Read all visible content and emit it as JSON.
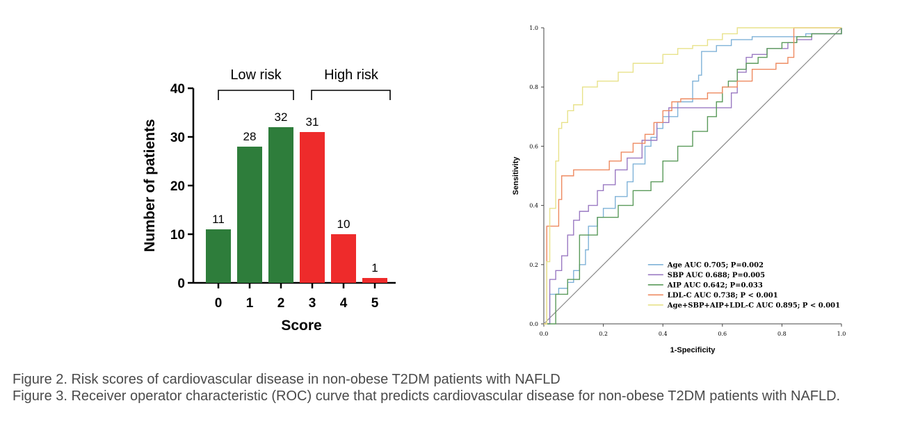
{
  "chart_data": [
    {
      "type": "bar",
      "xlabel": "Score",
      "ylabel": "Number of patients",
      "categories": [
        "0",
        "1",
        "2",
        "3",
        "4",
        "5"
      ],
      "values": [
        11,
        28,
        32,
        31,
        10,
        1
      ],
      "colors": [
        "#2e7d3b",
        "#2e7d3b",
        "#2e7d3b",
        "#ee2b2b",
        "#ee2b2b",
        "#ee2b2b"
      ],
      "ylim": [
        0,
        40
      ],
      "yticks": [
        0,
        10,
        20,
        30,
        40
      ],
      "groups": [
        {
          "label": "Low risk",
          "categories": [
            "0",
            "1",
            "2"
          ]
        },
        {
          "label": "High risk",
          "categories": [
            "3",
            "4",
            "5"
          ]
        }
      ]
    },
    {
      "type": "line",
      "xlabel": "1-Specificity",
      "ylabel": "Sensitivity",
      "xlim": [
        0,
        1
      ],
      "ylim": [
        0,
        1
      ],
      "xticks": [
        "0.0",
        "0.2",
        "0.4",
        "0.6",
        "0.8",
        "1.0"
      ],
      "yticks": [
        "0.0",
        "0.2",
        "0.4",
        "0.6",
        "0.8",
        "1.0"
      ],
      "legend_position": "bottom-right",
      "series": [
        {
          "name": "Age AUC 0.705; P=0.002",
          "color": "#7fb2d8",
          "x": [
            0,
            0.02,
            0.02,
            0.05,
            0.08,
            0.1,
            0.12,
            0.14,
            0.15,
            0.18,
            0.2,
            0.24,
            0.28,
            0.3,
            0.34,
            0.36,
            0.38,
            0.4,
            0.45,
            0.5,
            0.5,
            0.52,
            0.53,
            0.58,
            0.63,
            0.7,
            0.8,
            0.88,
            1.0
          ],
          "y": [
            0,
            0.03,
            0.1,
            0.12,
            0.14,
            0.18,
            0.2,
            0.25,
            0.33,
            0.36,
            0.39,
            0.43,
            0.48,
            0.54,
            0.6,
            0.63,
            0.66,
            0.7,
            0.75,
            0.8,
            0.82,
            0.84,
            0.92,
            0.94,
            0.96,
            0.97,
            0.97,
            0.98,
            1.0
          ]
        },
        {
          "name": "SBP AUC 0.688; P=0.005",
          "color": "#9a79c2",
          "x": [
            0,
            0.02,
            0.04,
            0.06,
            0.08,
            0.1,
            0.12,
            0.15,
            0.18,
            0.2,
            0.24,
            0.28,
            0.33,
            0.38,
            0.42,
            0.5,
            0.6,
            0.63,
            0.65,
            0.68,
            0.7,
            0.75,
            0.82,
            0.85,
            0.9,
            1.0
          ],
          "y": [
            0,
            0.15,
            0.18,
            0.23,
            0.3,
            0.35,
            0.38,
            0.4,
            0.45,
            0.47,
            0.52,
            0.56,
            0.62,
            0.68,
            0.73,
            0.73,
            0.73,
            0.78,
            0.85,
            0.9,
            0.91,
            0.93,
            0.95,
            0.96,
            0.98,
            1.0
          ]
        },
        {
          "name": "AIP AUC 0.642; P=0.033",
          "color": "#5a9a5a",
          "x": [
            0,
            0.04,
            0.08,
            0.12,
            0.18,
            0.25,
            0.3,
            0.36,
            0.4,
            0.45,
            0.5,
            0.55,
            0.58,
            0.6,
            0.62,
            0.65,
            0.68,
            0.72,
            0.75,
            0.8,
            0.85,
            0.9,
            1.0
          ],
          "y": [
            0,
            0.1,
            0.15,
            0.3,
            0.36,
            0.4,
            0.45,
            0.48,
            0.55,
            0.6,
            0.65,
            0.7,
            0.75,
            0.8,
            0.82,
            0.86,
            0.88,
            0.9,
            0.93,
            0.95,
            0.97,
            0.98,
            1.0
          ]
        },
        {
          "name": "LDL-C AUC 0.738; P < 0.001",
          "color": "#ee8a60",
          "x": [
            0,
            0.01,
            0.05,
            0.06,
            0.1,
            0.2,
            0.22,
            0.26,
            0.3,
            0.34,
            0.37,
            0.4,
            0.43,
            0.46,
            0.5,
            0.55,
            0.6,
            0.65,
            0.7,
            0.78,
            0.82,
            0.84,
            0.9,
            1.0
          ],
          "y": [
            0,
            0.33,
            0.42,
            0.5,
            0.52,
            0.52,
            0.55,
            0.58,
            0.61,
            0.64,
            0.68,
            0.72,
            0.75,
            0.76,
            0.76,
            0.78,
            0.8,
            0.82,
            0.86,
            0.88,
            0.9,
            1.0,
            1.0,
            1.0
          ]
        },
        {
          "name": "Age+SBP+AIP+LDL-C AUC 0.895; P < 0.001",
          "color": "#e8e28a",
          "x": [
            0,
            0.01,
            0.02,
            0.04,
            0.05,
            0.06,
            0.08,
            0.1,
            0.13,
            0.18,
            0.25,
            0.3,
            0.4,
            0.45,
            0.5,
            0.55,
            0.6,
            0.65,
            0.7,
            0.8,
            1.0
          ],
          "y": [
            0,
            0.21,
            0.39,
            0.55,
            0.66,
            0.68,
            0.72,
            0.74,
            0.8,
            0.82,
            0.85,
            0.88,
            0.91,
            0.93,
            0.94,
            0.96,
            0.98,
            1.0,
            1.0,
            1.0,
            1.0
          ]
        }
      ]
    }
  ],
  "captions": {
    "figure2": "Figure 2. Risk scores of cardiovascular disease in non-obese T2DM patients with NAFLD",
    "figure3": "Figure 3. Receiver operator characteristic (ROC) curve that predicts cardiovascular disease for non-obese T2DM patients with NAFLD."
  }
}
